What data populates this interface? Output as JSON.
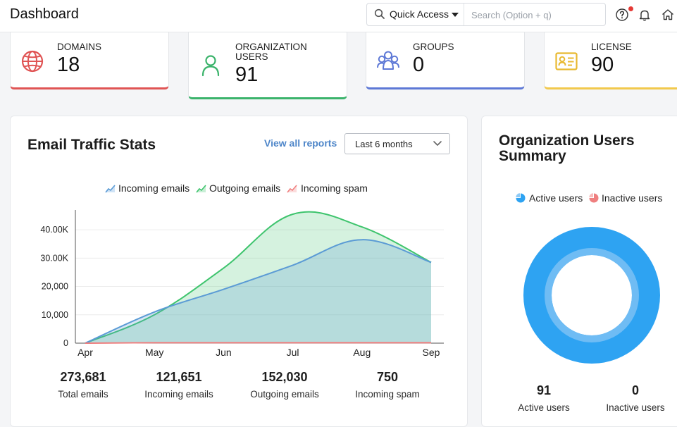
{
  "header": {
    "title": "Dashboard",
    "quick_access": "Quick Access",
    "search_placeholder": "Search (Option + q)"
  },
  "cards": [
    {
      "label": "DOMAINS",
      "value": "18",
      "color": "#e05454"
    },
    {
      "label": "ORGANIZATION USERS",
      "label_line1": "ORGANIZATION",
      "label_line2": "USERS",
      "value": "91",
      "color": "#3bb36b"
    },
    {
      "label": "GROUPS",
      "value": "0",
      "color": "#5d78d6"
    },
    {
      "label": "LICENSE",
      "value": "90",
      "color": "#f2c94c"
    }
  ],
  "traffic": {
    "title": "Email Traffic Stats",
    "view_all": "View all reports",
    "period": "Last 6 months",
    "legend": [
      "Incoming emails",
      "Outgoing emails",
      "Incoming spam"
    ],
    "stats": [
      {
        "value": "273,681",
        "label": "Total emails"
      },
      {
        "value": "121,651",
        "label": "Incoming emails"
      },
      {
        "value": "152,030",
        "label": "Outgoing emails"
      },
      {
        "value": "750",
        "label": "Incoming spam"
      }
    ]
  },
  "chart_data": {
    "type": "area",
    "categories": [
      "Apr",
      "May",
      "Jun",
      "Jul",
      "Aug",
      "Sep"
    ],
    "y_ticks": [
      "0",
      "10,000",
      "20,000",
      "30.00K",
      "40.00K"
    ],
    "ylim": [
      0,
      45000
    ],
    "series": [
      {
        "name": "Incoming emails",
        "color": "#5b9bd5",
        "values": [
          0,
          11000,
          19000,
          27500,
          36500,
          28500
        ]
      },
      {
        "name": "Outgoing emails",
        "color": "#3ec46d",
        "values": [
          0,
          10000,
          26500,
          45500,
          41000,
          28500
        ]
      },
      {
        "name": "Incoming spam",
        "color": "#f08080",
        "values": [
          0,
          150,
          150,
          150,
          150,
          150
        ]
      }
    ]
  },
  "users_summary": {
    "title_line1": "Organization Users",
    "title_line2": "Summary",
    "legend": [
      "Active users",
      "Inactive users"
    ],
    "active_count": "91",
    "inactive_count": "0",
    "active_label": "Active users",
    "inactive_label": "Inactive users",
    "active_color": "#2ea3f2",
    "inactive_color": "#ef7f7f"
  }
}
